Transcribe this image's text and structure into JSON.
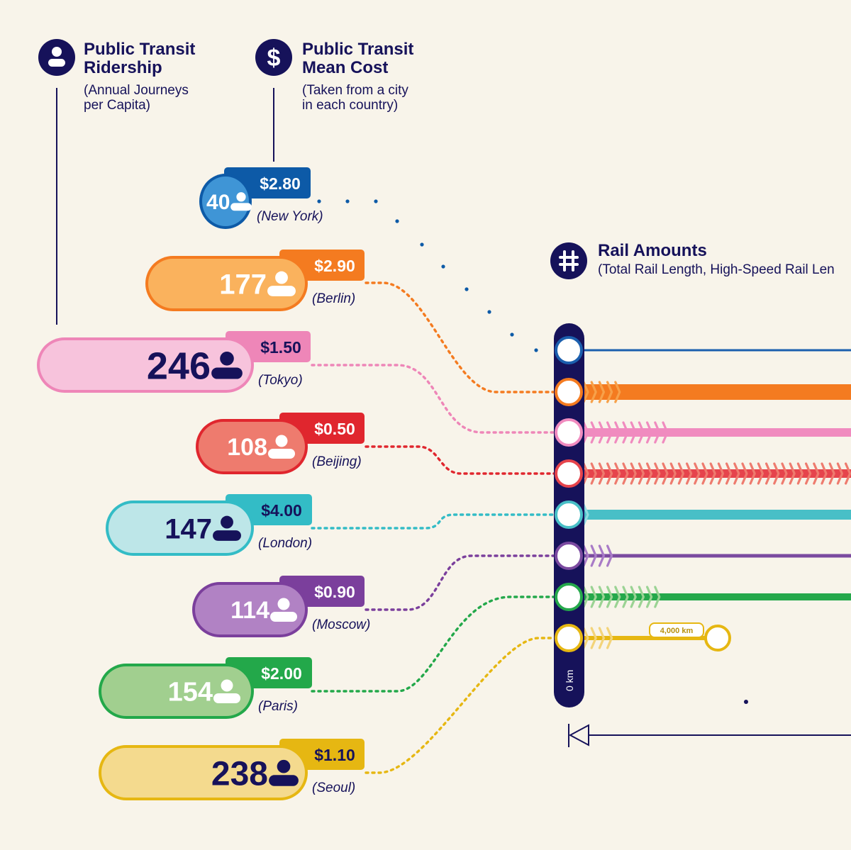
{
  "legend": {
    "ridership": {
      "icon": "person-icon",
      "title_line1": "Public Transit",
      "title_line2": "Ridership",
      "sub_line1": "(Annual Journeys",
      "sub_line2": "per Capita)"
    },
    "cost": {
      "icon": "dollar-icon",
      "title_line1": "Public Transit",
      "title_line2": "Mean Cost",
      "sub_line1": "(Taken from a city",
      "sub_line2": "in each country)"
    },
    "rail": {
      "icon": "rail-track-icon",
      "title": "Rail Amounts",
      "sub": "(Total Rail Length, High-Speed Rail Len"
    }
  },
  "scale": {
    "zero_label": "0 km",
    "marker_label": "4,000 km"
  },
  "colors": {
    "navy": "#16125a",
    "background": "#f8f4ea"
  },
  "chart_data": {
    "type": "table",
    "columns": [
      "city",
      "ridership_annual_journeys_per_capita",
      "mean_cost",
      "high_speed_chevrons"
    ],
    "rows": [
      {
        "city": "(New York)",
        "ridership": "40",
        "cost": "$2.80",
        "chevrons": 0,
        "fill": "#3f95d6",
        "dark": "#0d5aa7",
        "num_color": "#ffffff",
        "icon_color": "#ffffff",
        "line": "#1b5fae",
        "line_thick": 3,
        "chev": "#1b5fae"
      },
      {
        "city": "(Berlin)",
        "ridership": "177",
        "cost": "$2.90",
        "chevrons": 5,
        "fill": "#fab25d",
        "dark": "#f47b20",
        "num_color": "#ffffff",
        "icon_color": "#ffffff",
        "line": "#f47b20",
        "line_thick": 22,
        "chev": "#f7a14a"
      },
      {
        "city": "(Tokyo)",
        "ridership": "246",
        "cost": "$1.50",
        "chevrons": 11,
        "fill": "#f7c3dc",
        "dark": "#ee86b8",
        "num_color": "#16125a",
        "icon_color": "#16125a",
        "line": "#f08bbf",
        "line_thick": 12,
        "chev": "#f08bbf"
      },
      {
        "city": "(Beijing)",
        "ridership": "108",
        "cost": "$0.50",
        "chevrons": 42,
        "fill": "#ee7b6e",
        "dark": "#e0262e",
        "num_color": "#ffffff",
        "icon_color": "#ffffff",
        "line": "#e6444c",
        "line_thick": 12,
        "chev": "#ee7b6e"
      },
      {
        "city": "(London)",
        "ridership": "147",
        "cost": "$4.00",
        "chevrons": 1,
        "fill": "#bde6e8",
        "dark": "#33bcc6",
        "num_color": "#16125a",
        "icon_color": "#16125a",
        "line": "#48bfc7",
        "line_thick": 14,
        "chev": "#8fdbe0"
      },
      {
        "city": "(Moscow)",
        "ridership": "114",
        "cost": "$0.90",
        "chevrons": 4,
        "fill": "#b182c4",
        "dark": "#7b3f9c",
        "num_color": "#ffffff",
        "icon_color": "#ffffff",
        "line": "#7b4aa0",
        "line_thick": 5,
        "chev": "#a97bc7"
      },
      {
        "city": "(Paris)",
        "ridership": "154",
        "cost": "$2.00",
        "chevrons": 10,
        "fill": "#a1cf8f",
        "dark": "#23a84a",
        "num_color": "#ffffff",
        "icon_color": "#ffffff",
        "line": "#25a84b",
        "line_thick": 10,
        "chev": "#9bd394"
      },
      {
        "city": "(Seoul)",
        "ridership": "238",
        "cost": "$1.10",
        "chevrons": 4,
        "fill": "#f4da8e",
        "dark": "#e6b712",
        "num_color": "#16125a",
        "icon_color": "#16125a",
        "line": "#e6b712",
        "line_thick": 6,
        "chev": "#f3d47a"
      }
    ]
  }
}
